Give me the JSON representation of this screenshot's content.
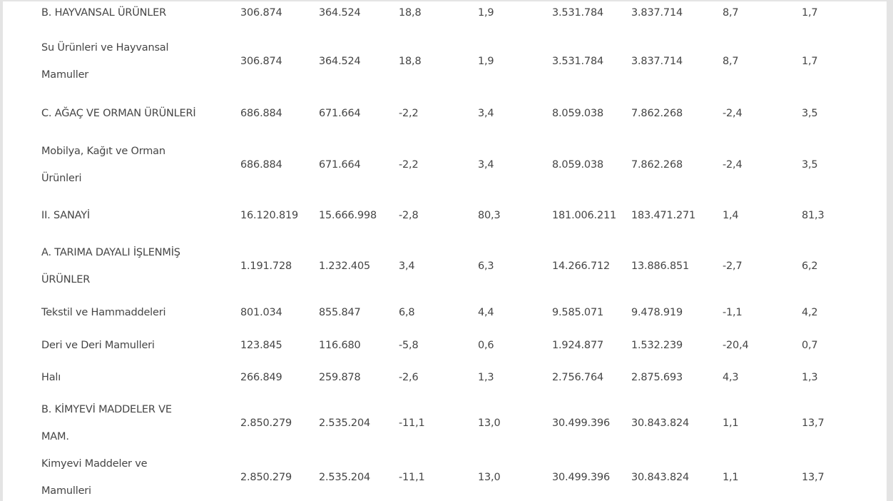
{
  "rows": [
    {
      "label": [
        "B. HAYVANSAL ÜRÜNLER"
      ],
      "values": [
        "306.874",
        "364.524",
        "18,8",
        "1,9",
        "3.531.784",
        "3.837.714",
        "8,7",
        "1,7"
      ]
    },
    {
      "label": [
        "Su Ürünleri ve Hayvansal",
        "Mamuller"
      ],
      "values": [
        "306.874",
        "364.524",
        "18,8",
        "1,9",
        "3.531.784",
        "3.837.714",
        "8,7",
        "1,7"
      ]
    },
    {
      "label": [
        "C. AĞAÇ VE ORMAN ÜRÜNLERİ"
      ],
      "values": [
        "686.884",
        "671.664",
        "-2,2",
        "3,4",
        "8.059.038",
        "7.862.268",
        "-2,4",
        "3,5"
      ]
    },
    {
      "label": [
        "Mobilya, Kağıt ve Orman",
        "Ürünleri"
      ],
      "values": [
        "686.884",
        "671.664",
        "-2,2",
        "3,4",
        "8.059.038",
        "7.862.268",
        "-2,4",
        "3,5"
      ]
    },
    {
      "label": [
        "II. SANAYİ"
      ],
      "values": [
        "16.120.819",
        "15.666.998",
        "-2,8",
        "80,3",
        "181.006.211",
        "183.471.271",
        "1,4",
        "81,3"
      ]
    },
    {
      "label": [
        "A. TARIMA DAYALI İŞLENMİŞ",
        "ÜRÜNLER"
      ],
      "values": [
        "1.191.728",
        "1.232.405",
        "3,4",
        "6,3",
        "14.266.712",
        "13.886.851",
        "-2,7",
        "6,2"
      ]
    },
    {
      "label": [
        "Tekstil ve Hammaddeleri"
      ],
      "values": [
        "801.034",
        "855.847",
        "6,8",
        "4,4",
        "9.585.071",
        "9.478.919",
        "-1,1",
        "4,2"
      ]
    },
    {
      "label": [
        "Deri ve Deri Mamulleri"
      ],
      "values": [
        "123.845",
        "116.680",
        "-5,8",
        "0,6",
        "1.924.877",
        "1.532.239",
        "-20,4",
        "0,7"
      ]
    },
    {
      "label": [
        "Halı"
      ],
      "values": [
        "266.849",
        "259.878",
        "-2,6",
        "1,3",
        "2.756.764",
        "2.875.693",
        "4,3",
        "1,3"
      ]
    },
    {
      "label": [
        "B. KİMYEVİ MADDELER VE",
        "MAM."
      ],
      "values": [
        "2.850.279",
        "2.535.204",
        "-11,1",
        "13,0",
        "30.499.396",
        "30.843.824",
        "1,1",
        "13,7"
      ]
    },
    {
      "label": [
        "Kimyevi Maddeler ve",
        "Mamulleri"
      ],
      "values": [
        "2.850.279",
        "2.535.204",
        "-11,1",
        "13,0",
        "30.499.396",
        "30.843.824",
        "1,1",
        "13,7"
      ]
    }
  ]
}
